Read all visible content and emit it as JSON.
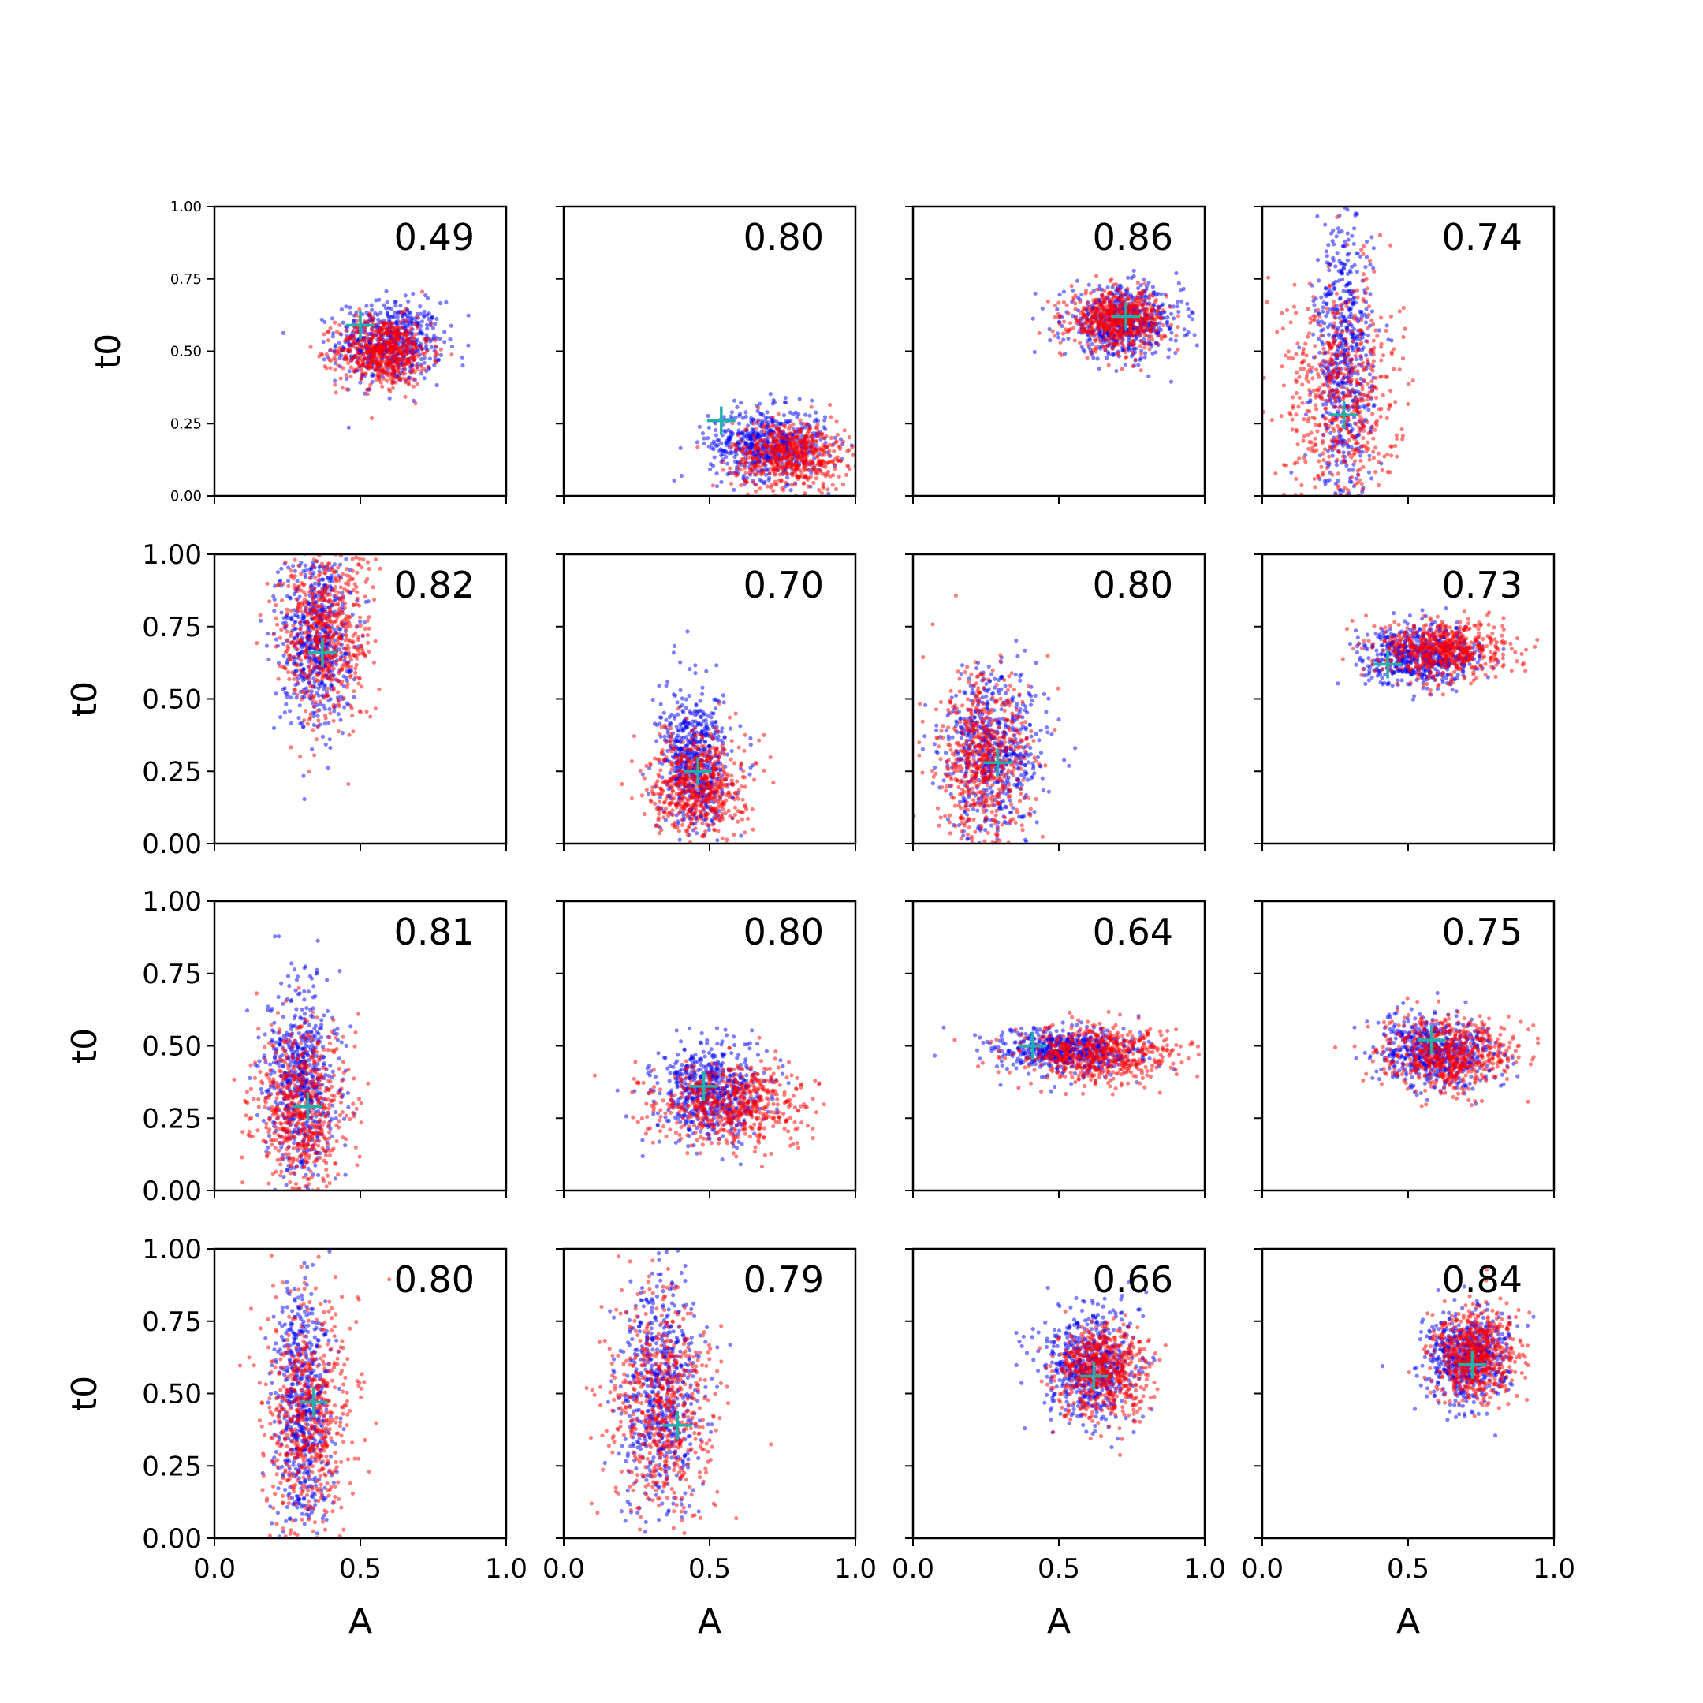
{
  "figure": {
    "x_axis_label": "A",
    "y_axis_label": "t0",
    "rows": 4,
    "cols": 4
  },
  "colors": {
    "series_a": "#0000ff",
    "series_b": "#ff0000",
    "marker": "#20b2aa"
  },
  "chart_data": [
    {
      "type": "scatter",
      "panel": [
        1,
        1
      ],
      "annotation": "0.49",
      "xlim": [
        0,
        1
      ],
      "ylim": [
        0,
        1
      ],
      "xticks": [
        "0.0",
        "0.5",
        "1.0"
      ],
      "yticks": [
        "0.00",
        "0.25",
        "0.50",
        "0.75",
        "1.00"
      ],
      "xlabel": "",
      "ylabel": "t0",
      "marker": [
        0.5,
        0.59
      ],
      "blue": {
        "center": [
          0.6,
          0.53
        ],
        "spread": [
          0.09,
          0.07
        ],
        "n": 600
      },
      "red": {
        "center": [
          0.58,
          0.5
        ],
        "spread": [
          0.08,
          0.06
        ],
        "n": 600
      }
    },
    {
      "type": "scatter",
      "panel": [
        1,
        2
      ],
      "annotation": "0.80",
      "xlim": [
        0,
        1
      ],
      "ylim": [
        0,
        1
      ],
      "xticks": [
        "0.0",
        "0.5",
        "1.0"
      ],
      "yticks": [
        "0.00",
        "0.25",
        "0.50",
        "0.75",
        "1.00"
      ],
      "xlabel": "",
      "ylabel": "",
      "marker": [
        0.54,
        0.26
      ],
      "blue": {
        "center": [
          0.7,
          0.18
        ],
        "spread": [
          0.1,
          0.06
        ],
        "n": 600
      },
      "red": {
        "center": [
          0.78,
          0.14
        ],
        "spread": [
          0.1,
          0.06
        ],
        "n": 600
      }
    },
    {
      "type": "scatter",
      "panel": [
        1,
        3
      ],
      "annotation": "0.86",
      "xlim": [
        0,
        1
      ],
      "ylim": [
        0,
        1
      ],
      "xticks": [
        "0.0",
        "0.5",
        "1.0"
      ],
      "yticks": [
        "0.00",
        "0.25",
        "0.50",
        "0.75",
        "1.00"
      ],
      "xlabel": "",
      "ylabel": "",
      "marker": [
        0.73,
        0.62
      ],
      "blue": {
        "center": [
          0.72,
          0.6
        ],
        "spread": [
          0.1,
          0.06
        ],
        "n": 600
      },
      "red": {
        "center": [
          0.7,
          0.61
        ],
        "spread": [
          0.08,
          0.05
        ],
        "n": 600
      }
    },
    {
      "type": "scatter",
      "panel": [
        1,
        4
      ],
      "annotation": "0.74",
      "xlim": [
        0,
        1
      ],
      "ylim": [
        0,
        1
      ],
      "xticks": [
        "0.0",
        "0.5",
        "1.0"
      ],
      "yticks": [
        "0.00",
        "0.25",
        "0.50",
        "0.75",
        "1.00"
      ],
      "xlabel": "",
      "ylabel": "",
      "marker": [
        0.28,
        0.28
      ],
      "blue": {
        "center": [
          0.28,
          0.45
        ],
        "spread": [
          0.05,
          0.25
        ],
        "n": 600
      },
      "red": {
        "center": [
          0.27,
          0.35
        ],
        "spread": [
          0.1,
          0.2
        ],
        "n": 600
      }
    },
    {
      "type": "scatter",
      "panel": [
        2,
        1
      ],
      "annotation": "0.82",
      "xlim": [
        0,
        1
      ],
      "ylim": [
        0,
        1
      ],
      "xticks": [
        "0.0",
        "0.5",
        "1.0"
      ],
      "yticks": [
        "0.00",
        "0.25",
        "0.50",
        "0.75",
        "1.00"
      ],
      "xlabel": "",
      "ylabel": "t0",
      "marker": [
        0.37,
        0.66
      ],
      "blue": {
        "center": [
          0.35,
          0.72
        ],
        "spread": [
          0.06,
          0.16
        ],
        "n": 600
      },
      "red": {
        "center": [
          0.38,
          0.72
        ],
        "spread": [
          0.08,
          0.15
        ],
        "n": 600
      }
    },
    {
      "type": "scatter",
      "panel": [
        2,
        2
      ],
      "annotation": "0.70",
      "xlim": [
        0,
        1
      ],
      "ylim": [
        0,
        1
      ],
      "xticks": [
        "0.0",
        "0.5",
        "1.0"
      ],
      "yticks": [
        "0.00",
        "0.25",
        "0.50",
        "0.75",
        "1.00"
      ],
      "xlabel": "",
      "ylabel": "",
      "marker": [
        0.46,
        0.25
      ],
      "blue": {
        "center": [
          0.45,
          0.28
        ],
        "spread": [
          0.06,
          0.12
        ],
        "n": 600
      },
      "red": {
        "center": [
          0.46,
          0.2
        ],
        "spread": [
          0.08,
          0.09
        ],
        "n": 600
      }
    },
    {
      "type": "scatter",
      "panel": [
        2,
        3
      ],
      "annotation": "0.80",
      "xlim": [
        0,
        1
      ],
      "ylim": [
        0,
        1
      ],
      "xticks": [
        "0.0",
        "0.5",
        "1.0"
      ],
      "yticks": [
        "0.00",
        "0.25",
        "0.50",
        "0.75",
        "1.00"
      ],
      "xlabel": "",
      "ylabel": "",
      "marker": [
        0.29,
        0.28
      ],
      "blue": {
        "center": [
          0.28,
          0.32
        ],
        "spread": [
          0.09,
          0.14
        ],
        "n": 600
      },
      "red": {
        "center": [
          0.24,
          0.28
        ],
        "spread": [
          0.08,
          0.15
        ],
        "n": 600
      }
    },
    {
      "type": "scatter",
      "panel": [
        2,
        4
      ],
      "annotation": "0.73",
      "xlim": [
        0,
        1
      ],
      "ylim": [
        0,
        1
      ],
      "xticks": [
        "0.0",
        "0.5",
        "1.0"
      ],
      "yticks": [
        "0.00",
        "0.25",
        "0.50",
        "0.75",
        "1.00"
      ],
      "xlabel": "",
      "ylabel": "",
      "marker": [
        0.43,
        0.62
      ],
      "blue": {
        "center": [
          0.55,
          0.65
        ],
        "spread": [
          0.1,
          0.05
        ],
        "n": 600
      },
      "red": {
        "center": [
          0.62,
          0.67
        ],
        "spread": [
          0.11,
          0.05
        ],
        "n": 600
      }
    },
    {
      "type": "scatter",
      "panel": [
        3,
        1
      ],
      "annotation": "0.81",
      "xlim": [
        0,
        1
      ],
      "ylim": [
        0,
        1
      ],
      "xticks": [
        "0.0",
        "0.5",
        "1.0"
      ],
      "yticks": [
        "0.00",
        "0.25",
        "0.50",
        "0.75",
        "1.00"
      ],
      "xlabel": "",
      "ylabel": "t0",
      "marker": [
        0.32,
        0.29
      ],
      "blue": {
        "center": [
          0.3,
          0.38
        ],
        "spread": [
          0.06,
          0.17
        ],
        "n": 600
      },
      "red": {
        "center": [
          0.3,
          0.28
        ],
        "spread": [
          0.08,
          0.14
        ],
        "n": 600
      }
    },
    {
      "type": "scatter",
      "panel": [
        3,
        2
      ],
      "annotation": "0.80",
      "xlim": [
        0,
        1
      ],
      "ylim": [
        0,
        1
      ],
      "xticks": [
        "0.0",
        "0.5",
        "1.0"
      ],
      "yticks": [
        "0.00",
        "0.25",
        "0.50",
        "0.75",
        "1.00"
      ],
      "xlabel": "",
      "ylabel": "",
      "marker": [
        0.48,
        0.36
      ],
      "blue": {
        "center": [
          0.5,
          0.34
        ],
        "spread": [
          0.09,
          0.08
        ],
        "n": 600
      },
      "red": {
        "center": [
          0.58,
          0.3
        ],
        "spread": [
          0.13,
          0.07
        ],
        "n": 600
      }
    },
    {
      "type": "scatter",
      "panel": [
        3,
        3
      ],
      "annotation": "0.64",
      "xlim": [
        0,
        1
      ],
      "ylim": [
        0,
        1
      ],
      "xticks": [
        "0.0",
        "0.5",
        "1.0"
      ],
      "yticks": [
        "0.00",
        "0.25",
        "0.50",
        "0.75",
        "1.00"
      ],
      "xlabel": "",
      "ylabel": "",
      "marker": [
        0.41,
        0.5
      ],
      "blue": {
        "center": [
          0.52,
          0.48
        ],
        "spread": [
          0.12,
          0.04
        ],
        "n": 600
      },
      "red": {
        "center": [
          0.64,
          0.47
        ],
        "spread": [
          0.14,
          0.05
        ],
        "n": 600
      }
    },
    {
      "type": "scatter",
      "panel": [
        3,
        4
      ],
      "annotation": "0.75",
      "xlim": [
        0,
        1
      ],
      "ylim": [
        0,
        1
      ],
      "xticks": [
        "0.0",
        "0.5",
        "1.0"
      ],
      "yticks": [
        "0.00",
        "0.25",
        "0.50",
        "0.75",
        "1.00"
      ],
      "xlabel": "",
      "ylabel": "",
      "marker": [
        0.58,
        0.52
      ],
      "blue": {
        "center": [
          0.6,
          0.48
        ],
        "spread": [
          0.1,
          0.06
        ],
        "n": 600
      },
      "red": {
        "center": [
          0.64,
          0.47
        ],
        "spread": [
          0.11,
          0.06
        ],
        "n": 600
      }
    },
    {
      "type": "scatter",
      "panel": [
        4,
        1
      ],
      "annotation": "0.80",
      "xlim": [
        0,
        1
      ],
      "ylim": [
        0,
        1
      ],
      "xticks": [
        "0.0",
        "0.5",
        "1.0"
      ],
      "yticks": [
        "0.00",
        "0.25",
        "0.50",
        "0.75",
        "1.00"
      ],
      "xlabel": "A",
      "ylabel": "t0",
      "marker": [
        0.34,
        0.47
      ],
      "blue": {
        "center": [
          0.3,
          0.45
        ],
        "spread": [
          0.05,
          0.22
        ],
        "n": 600
      },
      "red": {
        "center": [
          0.33,
          0.42
        ],
        "spread": [
          0.08,
          0.2
        ],
        "n": 600
      }
    },
    {
      "type": "scatter",
      "panel": [
        4,
        2
      ],
      "annotation": "0.79",
      "xlim": [
        0,
        1
      ],
      "ylim": [
        0,
        1
      ],
      "xticks": [
        "0.0",
        "0.5",
        "1.0"
      ],
      "yticks": [
        "0.00",
        "0.25",
        "0.50",
        "0.75",
        "1.00"
      ],
      "xlabel": "A",
      "ylabel": "",
      "marker": [
        0.39,
        0.39
      ],
      "blue": {
        "center": [
          0.33,
          0.5
        ],
        "spread": [
          0.07,
          0.2
        ],
        "n": 600
      },
      "red": {
        "center": [
          0.33,
          0.45
        ],
        "spread": [
          0.09,
          0.2
        ],
        "n": 600
      }
    },
    {
      "type": "scatter",
      "panel": [
        4,
        3
      ],
      "annotation": "0.66",
      "xlim": [
        0,
        1
      ],
      "ylim": [
        0,
        1
      ],
      "xticks": [
        "0.0",
        "0.5",
        "1.0"
      ],
      "yticks": [
        "0.00",
        "0.25",
        "0.50",
        "0.75",
        "1.00"
      ],
      "xlabel": "A",
      "ylabel": "",
      "marker": [
        0.62,
        0.56
      ],
      "blue": {
        "center": [
          0.6,
          0.6
        ],
        "spread": [
          0.08,
          0.1
        ],
        "n": 600
      },
      "red": {
        "center": [
          0.65,
          0.57
        ],
        "spread": [
          0.08,
          0.08
        ],
        "n": 600
      }
    },
    {
      "type": "scatter",
      "panel": [
        4,
        4
      ],
      "annotation": "0.84",
      "xlim": [
        0,
        1
      ],
      "ylim": [
        0,
        1
      ],
      "xticks": [
        "0.0",
        "0.5",
        "1.0"
      ],
      "yticks": [
        "0.00",
        "0.25",
        "0.50",
        "0.75",
        "1.00"
      ],
      "xlabel": "A",
      "ylabel": "",
      "marker": [
        0.72,
        0.6
      ],
      "blue": {
        "center": [
          0.7,
          0.62
        ],
        "spread": [
          0.07,
          0.08
        ],
        "n": 600
      },
      "red": {
        "center": [
          0.73,
          0.63
        ],
        "spread": [
          0.07,
          0.08
        ],
        "n": 600
      }
    }
  ]
}
